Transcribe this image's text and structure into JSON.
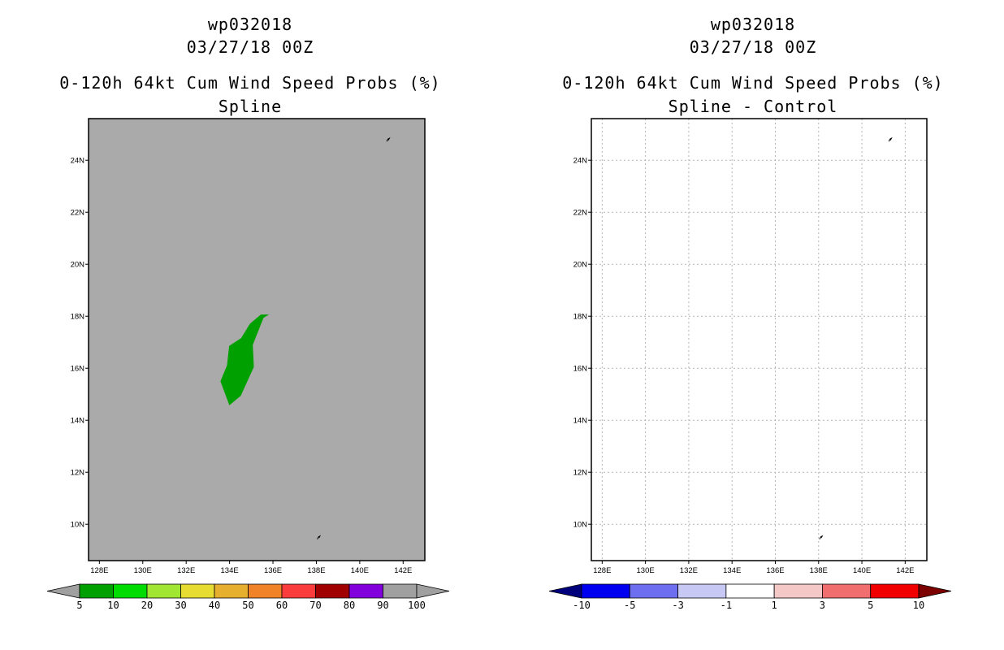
{
  "chart_data": [
    {
      "type": "heatmap",
      "storm_id": "wp032018",
      "datetime": "03/27/18 00Z",
      "title": "0-120h 64kt Cum Wind Speed Probs (%)",
      "subtitle": "Spline",
      "xlim": [
        127.5,
        143.0
      ],
      "ylim": [
        8.6,
        25.6
      ],
      "x_ticks": [
        128,
        130,
        132,
        134,
        136,
        138,
        140,
        142
      ],
      "x_tick_labels": [
        "128E",
        "130E",
        "132E",
        "134E",
        "136E",
        "138E",
        "140E",
        "142E"
      ],
      "y_ticks": [
        10,
        12,
        14,
        16,
        18,
        20,
        22,
        24
      ],
      "y_tick_labels": [
        "10N",
        "12N",
        "14N",
        "16N",
        "18N",
        "20N",
        "22N",
        "24N"
      ],
      "grid": false,
      "background_color": "#aaaaaa",
      "contour_regions": [
        {
          "level": "5-10",
          "color": "#00a000",
          "lonlat": [
            [
              134.0,
              14.6
            ],
            [
              134.5,
              14.95
            ],
            [
              135.1,
              16.05
            ],
            [
              135.05,
              16.9
            ],
            [
              135.55,
              17.95
            ],
            [
              135.75,
              18.05
            ],
            [
              135.45,
              18.05
            ],
            [
              134.95,
              17.7
            ],
            [
              134.55,
              17.15
            ],
            [
              134.0,
              16.85
            ],
            [
              133.9,
              16.1
            ],
            [
              133.6,
              15.5
            ],
            [
              134.0,
              14.6
            ]
          ]
        }
      ],
      "islands": [
        {
          "name": "",
          "lonlat": [
            141.3,
            24.8
          ]
        },
        {
          "name": "",
          "lonlat": [
            138.1,
            9.5
          ]
        }
      ],
      "colorbar": {
        "labels": [
          "5",
          "10",
          "20",
          "30",
          "40",
          "50",
          "60",
          "70",
          "80",
          "90",
          "100"
        ],
        "colors": [
          "#00a000",
          "#00dc00",
          "#a0e632",
          "#e6dc32",
          "#e6af2d",
          "#f08228",
          "#fa3c3c",
          "#a00000",
          "#8200dc",
          "#a0a0a0"
        ],
        "under_color": "#a0a0a0",
        "over_color": "#a0a0a0"
      }
    },
    {
      "type": "heatmap",
      "storm_id": "wp032018",
      "datetime": "03/27/18 00Z",
      "title": "0-120h 64kt Cum Wind Speed Probs (%)",
      "subtitle": "Spline - Control",
      "xlim": [
        127.5,
        143.0
      ],
      "ylim": [
        8.6,
        25.6
      ],
      "x_ticks": [
        128,
        130,
        132,
        134,
        136,
        138,
        140,
        142
      ],
      "x_tick_labels": [
        "128E",
        "130E",
        "132E",
        "134E",
        "136E",
        "138E",
        "140E",
        "142E"
      ],
      "y_ticks": [
        10,
        12,
        14,
        16,
        18,
        20,
        22,
        24
      ],
      "y_tick_labels": [
        "10N",
        "12N",
        "14N",
        "16N",
        "18N",
        "20N",
        "22N",
        "24N"
      ],
      "grid": true,
      "background_color": "#ffffff",
      "contour_regions": [],
      "islands": [
        {
          "name": "",
          "lonlat": [
            141.3,
            24.8
          ]
        },
        {
          "name": "",
          "lonlat": [
            138.1,
            9.5
          ]
        }
      ],
      "colorbar": {
        "labels": [
          "-10",
          "-5",
          "-3",
          "-1",
          "1",
          "3",
          "5",
          "10"
        ],
        "colors": [
          "#0000f0",
          "#6e6ef0",
          "#c8c8f5",
          "#ffffff",
          "#f5c8c8",
          "#f06e6e",
          "#f00000"
        ],
        "under_color": "#00007d",
        "over_color": "#7d0000"
      }
    }
  ]
}
